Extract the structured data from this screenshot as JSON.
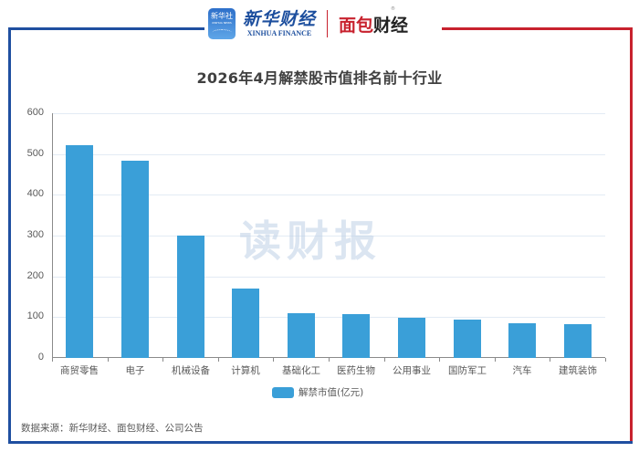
{
  "header": {
    "app_logo_text": "新华社",
    "app_logo_sub": "XINHUA NEWS",
    "brand1_cn": "新华财经",
    "brand1_en": "XINHUA FINANCE",
    "brand2_red": "面包",
    "brand2_dark": "财经",
    "brand2_reg": "®"
  },
  "colors": {
    "bar": "#3a9fd8",
    "frame_blue": "#1f4fa0",
    "frame_red": "#c8222e",
    "title": "#404040"
  },
  "watermark": "读财报",
  "legend": {
    "label": "解禁市值(亿元)"
  },
  "source": "数据来源：新华财经、面包财经、公司公告",
  "chart_data": {
    "type": "bar",
    "title": "2026年4月解禁股市值排名前十行业",
    "xlabel": "",
    "ylabel": "",
    "ylim": [
      0,
      600
    ],
    "yticks": [
      0,
      100,
      200,
      300,
      400,
      500,
      600
    ],
    "grid": true,
    "legend_position": "bottom",
    "categories": [
      "商贸零售",
      "电子",
      "机械设备",
      "计算机",
      "基础化工",
      "医药生物",
      "公用事业",
      "国防军工",
      "汽车",
      "建筑装饰"
    ],
    "series": [
      {
        "name": "解禁市值(亿元)",
        "values": [
          521,
          484,
          301,
          171,
          110,
          108,
          98,
          94,
          84,
          83
        ]
      }
    ]
  }
}
